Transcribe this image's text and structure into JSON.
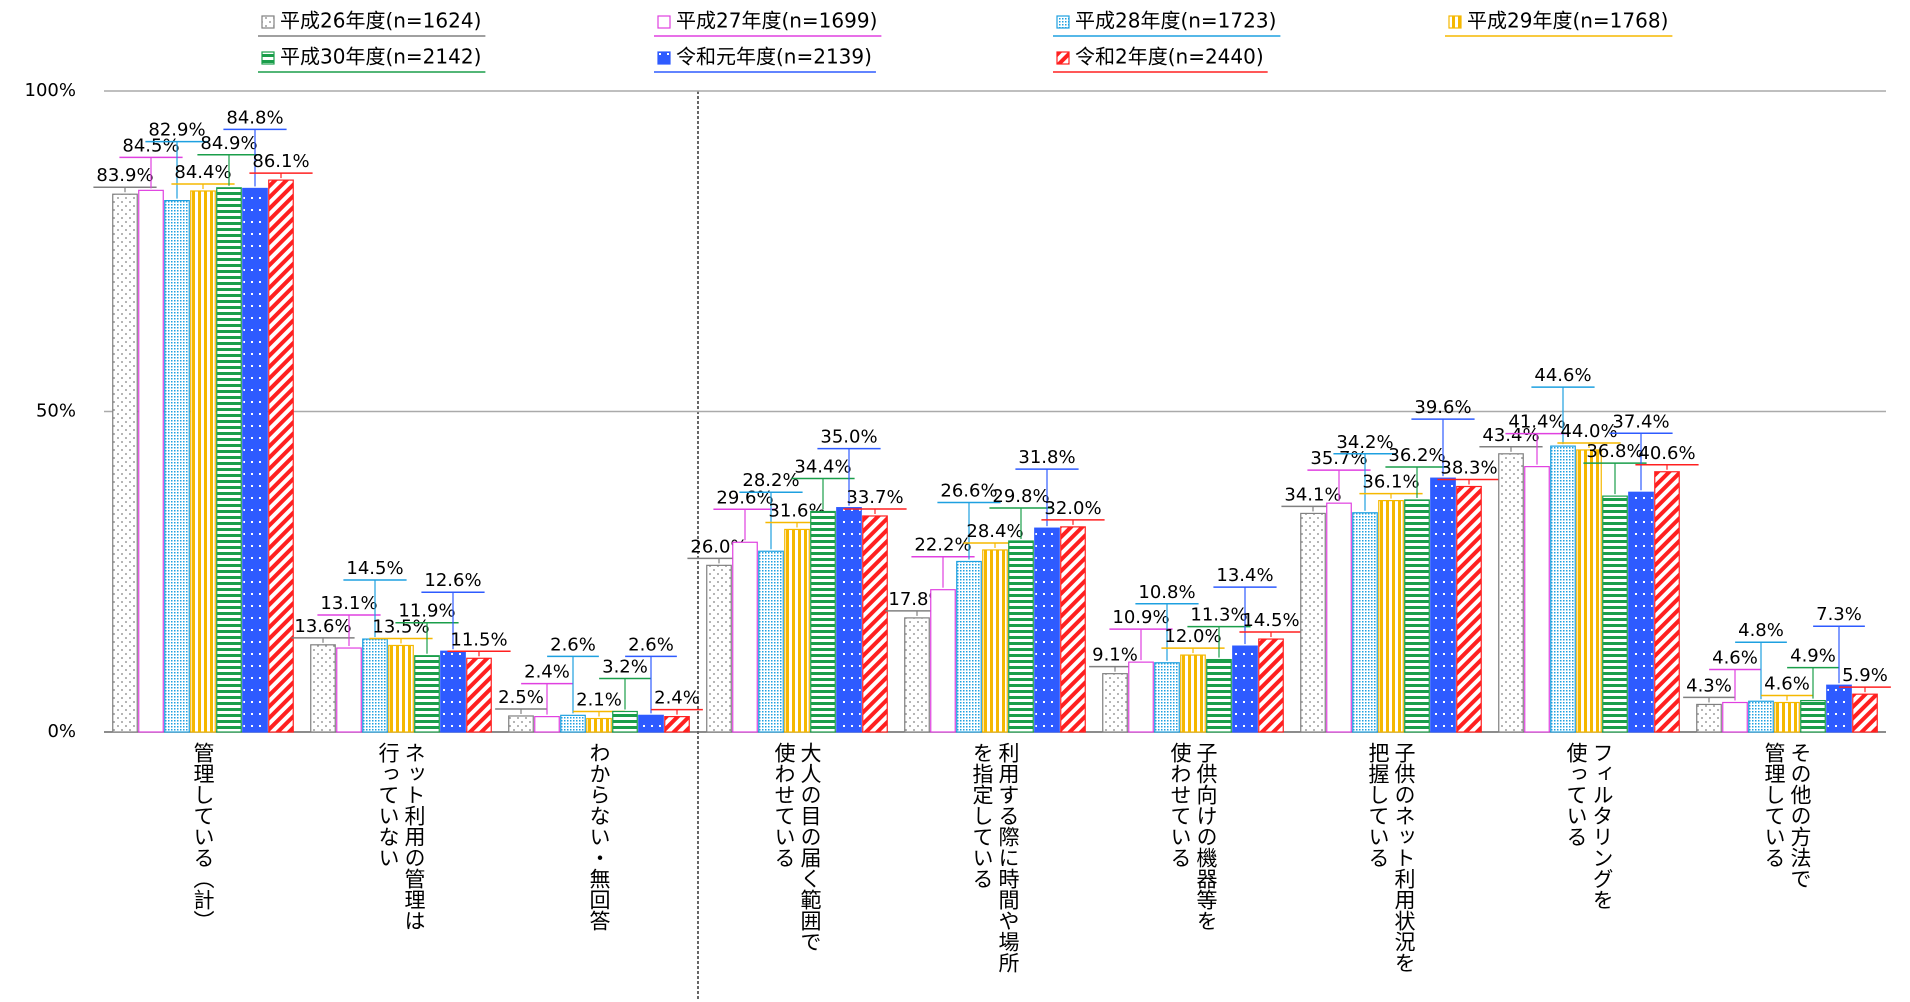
{
  "chart_data": {
    "type": "bar",
    "categories": [
      [
        "管理している（計）"
      ],
      [
        "ネット利用の管理は",
        "行っていない"
      ],
      [
        "わからない・無回答"
      ],
      [
        "大人の目の届く範囲で",
        "使わせている"
      ],
      [
        "利用する際に時間や場所",
        "を指定している"
      ],
      [
        "子供向けの機器等を",
        "使わせている"
      ],
      [
        "子供のネット利用状況を",
        "把握している"
      ],
      [
        "フィルタリングを",
        "使っている"
      ],
      [
        "その他の方法で",
        "管理している"
      ]
    ],
    "series": [
      {
        "name": "平成26年度(n=1624)",
        "color": "#808080",
        "pattern": "dots",
        "values": [
          83.9,
          13.6,
          2.5,
          26.0,
          17.8,
          9.1,
          34.1,
          43.4,
          4.3
        ],
        "value_labels": [
          "83.9%",
          "13.6%",
          "2.5%",
          "26.0%",
          "17.8%",
          "9.1%",
          "34.1%",
          "43.4%",
          "4.3%"
        ]
      },
      {
        "name": "平成27年度(n=1699)",
        "color": "#e040e0",
        "pattern": "none",
        "values": [
          84.5,
          13.1,
          2.4,
          29.6,
          22.2,
          10.9,
          35.7,
          41.4,
          4.6
        ],
        "value_labels": [
          "84.5%",
          "13.1%",
          "2.4%",
          "29.6%",
          "22.2%",
          "10.9%",
          "35.7%",
          "41.4%",
          "4.6%"
        ]
      },
      {
        "name": "平成28年度(n=1723)",
        "color": "#1ea0e0",
        "pattern": "fine-dots",
        "values": [
          82.9,
          14.5,
          2.6,
          28.2,
          26.6,
          10.8,
          34.2,
          44.6,
          4.8
        ],
        "value_labels": [
          "82.9%",
          "14.5%",
          "2.6%",
          "28.2%",
          "26.6%",
          "10.8%",
          "34.2%",
          "44.6%",
          "4.8%"
        ]
      },
      {
        "name": "平成29年度(n=1768)",
        "color": "#f5b800",
        "pattern": "vertical",
        "values": [
          84.4,
          13.5,
          2.1,
          31.6,
          28.4,
          12.0,
          36.1,
          44.0,
          4.6
        ],
        "value_labels": [
          "84.4%",
          "13.5%",
          "2.1%",
          "31.6%",
          "28.4%",
          "12.0%",
          "36.1%",
          "44.0%",
          "4.6%"
        ]
      },
      {
        "name": "平成30年度(n=2142)",
        "color": "#1a9e4a",
        "pattern": "horizontal",
        "values": [
          84.9,
          11.9,
          3.2,
          34.4,
          29.8,
          11.3,
          36.2,
          36.8,
          4.9
        ],
        "value_labels": [
          "84.9%",
          "11.9%",
          "3.2%",
          "34.4%",
          "29.8%",
          "11.3%",
          "36.2%",
          "36.8%",
          "4.9%"
        ]
      },
      {
        "name": "令和元年度(n=2139)",
        "color": "#2e5bff",
        "pattern": "dots-inverse",
        "values": [
          84.8,
          12.6,
          2.6,
          35.0,
          31.8,
          13.4,
          39.6,
          37.4,
          7.3
        ],
        "value_labels": [
          "84.8%",
          "12.6%",
          "2.6%",
          "35.0%",
          "31.8%",
          "13.4%",
          "39.6%",
          "37.4%",
          "7.3%"
        ]
      },
      {
        "name": "令和2年度(n=2440)",
        "color": "#ff2020",
        "pattern": "diagonal",
        "values": [
          86.1,
          11.5,
          2.4,
          33.7,
          32.0,
          14.5,
          38.3,
          40.6,
          5.9
        ],
        "value_labels": [
          "86.1%",
          "11.5%",
          "2.4%",
          "33.7%",
          "32.0%",
          "14.5%",
          "38.3%",
          "40.6%",
          "5.9%"
        ]
      }
    ],
    "ylim": [
      0,
      100
    ],
    "yticks": [
      {
        "value": 0,
        "label": "0%"
      },
      {
        "value": 50,
        "label": "50%"
      },
      {
        "value": 100,
        "label": "100%"
      }
    ],
    "grid": true
  }
}
